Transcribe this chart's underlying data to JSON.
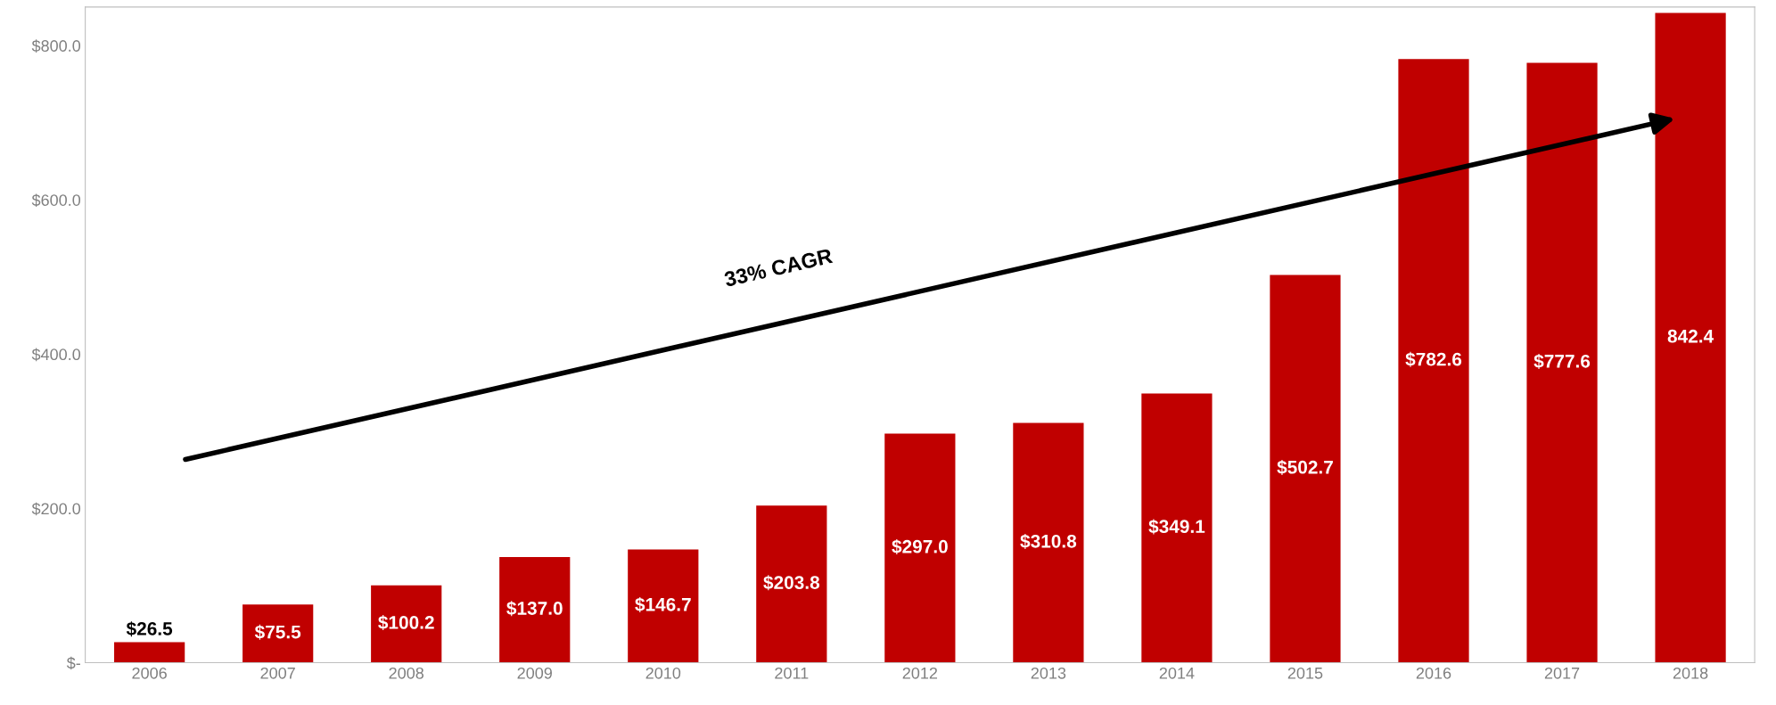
{
  "chart_data": {
    "type": "bar",
    "categories": [
      "2006",
      "2007",
      "2008",
      "2009",
      "2010",
      "2011",
      "2012",
      "2013",
      "2014",
      "2015",
      "2016",
      "2017",
      "2018"
    ],
    "values": [
      26.5,
      75.5,
      100.2,
      137.0,
      146.7,
      203.8,
      297.0,
      310.8,
      349.1,
      502.7,
      782.6,
      777.6,
      842.4
    ],
    "value_labels": [
      "$26.5",
      "$75.5",
      "$100.2",
      "$137.0",
      "$146.7",
      "$203.8",
      "$297.0",
      "$310.8",
      "$349.1",
      "$502.7",
      "$782.6",
      "$777.6",
      "842.4"
    ],
    "color": "#c00000",
    "ylim": [
      0,
      850
    ],
    "yticks": [
      {
        "value": 0,
        "label": "$-"
      },
      {
        "value": 200,
        "label": "$200.0"
      },
      {
        "value": 400,
        "label": "$400.0"
      },
      {
        "value": 600,
        "label": "$600.0"
      },
      {
        "value": 800,
        "label": "$800.0"
      }
    ],
    "grid": false,
    "annotations": [
      "33% CAGR"
    ]
  }
}
